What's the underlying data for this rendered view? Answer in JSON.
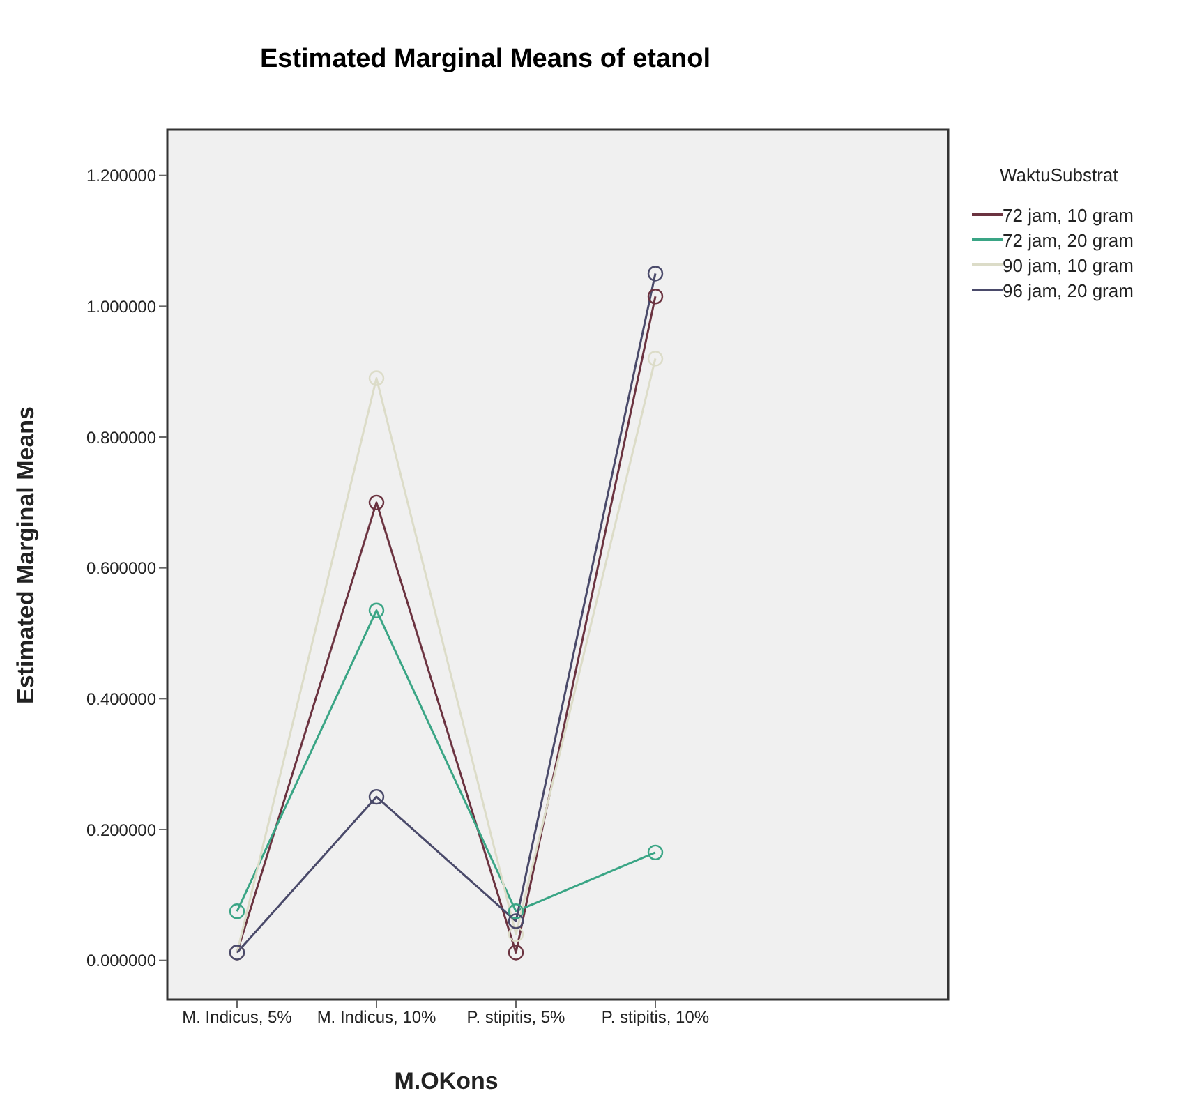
{
  "chart_data": {
    "type": "line",
    "title": "Estimated Marginal Means of etanol",
    "xlabel": "M.OKons",
    "ylabel": "Estimated Marginal Means",
    "legend_title": "WaktuSubstrat",
    "categories": [
      "M. Indicus, 5%",
      "M. Indicus, 10%",
      "P. stipitis, 5%",
      "P. stipitis, 10%"
    ],
    "series": [
      {
        "name": "72 jam, 10 gram",
        "color": "#6b3340",
        "values": [
          0.012,
          0.7,
          0.012,
          1.015
        ]
      },
      {
        "name": "72 jam, 20 gram",
        "color": "#3aa585",
        "values": [
          0.075,
          0.535,
          0.075,
          0.165
        ]
      },
      {
        "name": "90 jam, 10 gram",
        "color": "#dcdcc8",
        "values": [
          0.012,
          0.89,
          0.04,
          0.92
        ]
      },
      {
        "name": "96 jam, 20 gram",
        "color": "#4a4a6a",
        "values": [
          0.012,
          0.25,
          0.06,
          1.05
        ]
      }
    ],
    "ylim": [
      -0.06,
      1.27
    ],
    "yticks": [
      {
        "value": 0,
        "label": "0.000000"
      },
      {
        "value": 0.2,
        "label": "0.200000"
      },
      {
        "value": 0.4,
        "label": "0.400000"
      },
      {
        "value": 0.6,
        "label": "0.600000"
      },
      {
        "value": 0.8,
        "label": "0.800000"
      },
      {
        "value": 1,
        "label": "1.000000"
      },
      {
        "value": 1.2,
        "label": "1.200000"
      }
    ],
    "legend": "right",
    "marker": "circle",
    "line_style": "solid"
  }
}
